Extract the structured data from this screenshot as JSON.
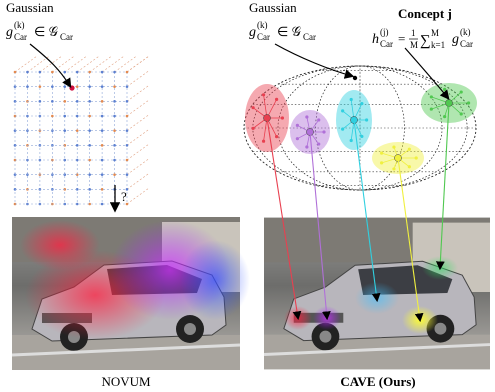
{
  "left": {
    "label": "Gaussian",
    "formula": [
      "g",
      "(k)",
      "Car",
      "∈ 𝒢",
      "Car"
    ],
    "question": "?",
    "caption": "NOVUM"
  },
  "right": {
    "label": "Gaussian",
    "formula": [
      "g",
      "(k)",
      "Car",
      "∈ 𝒢",
      "Car"
    ],
    "concept": "Concept j",
    "concept_formula": [
      "h",
      "(j)",
      "Car",
      "=",
      "1",
      "M",
      "∑",
      "M",
      "k=1",
      "g",
      "(k)",
      "Car"
    ],
    "caption": "CAVE (Ours)"
  }
}
